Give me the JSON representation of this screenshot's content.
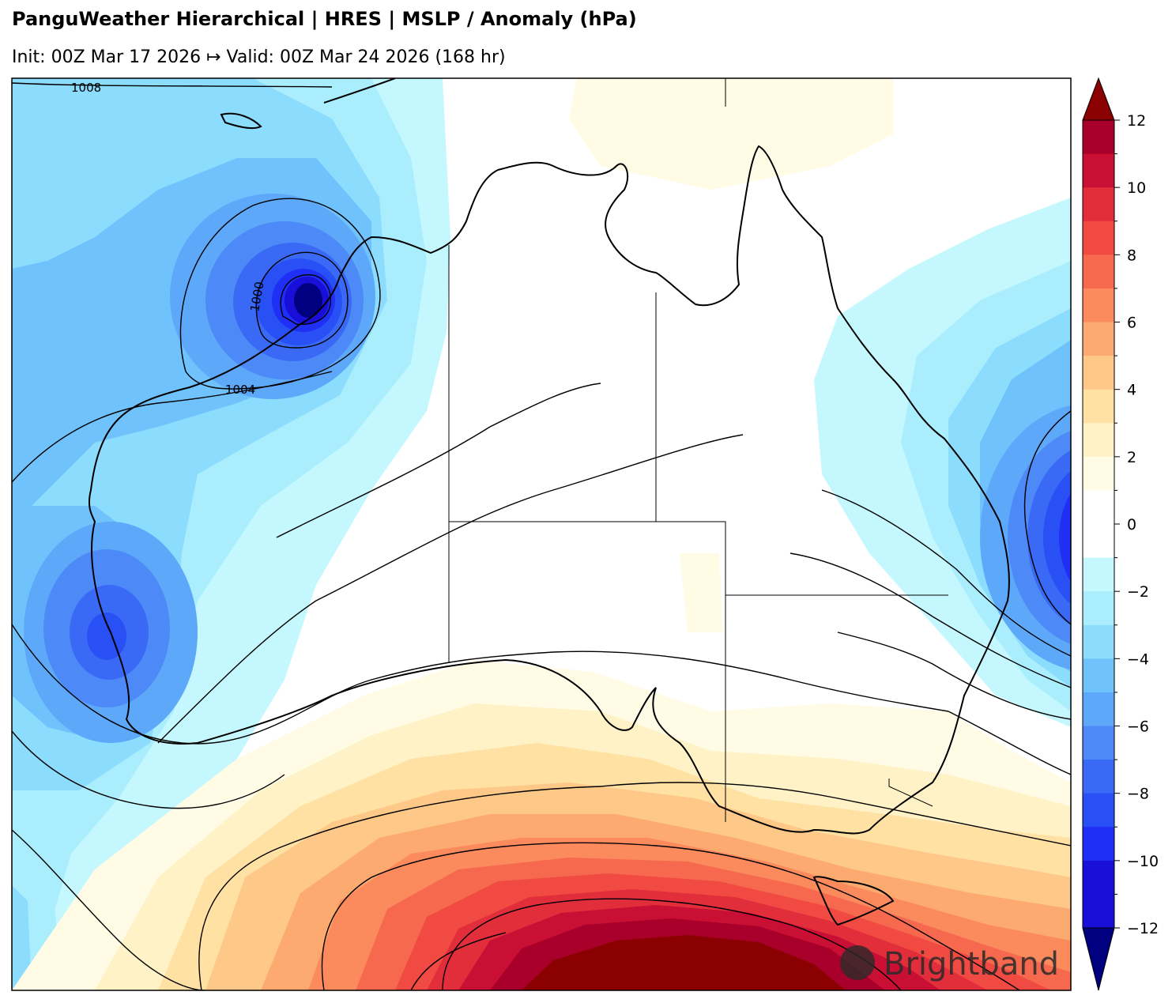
{
  "header": {
    "title": "PanguWeather Hierarchical | HRES | MSLP / Anomaly (hPa)",
    "subtitle": "Init: 00Z Mar 17 2026 ↦ Valid: 00Z Mar 24 2026 (168 hr)"
  },
  "map": {
    "region": "Australia",
    "field": "MSLP anomaly",
    "isobar_labels": [
      "1008",
      "1000",
      "1004"
    ]
  },
  "colorbar": {
    "ticks": [
      "12",
      "10",
      "8",
      "6",
      "4",
      "2",
      "0",
      "−2",
      "−4",
      "−6",
      "−8",
      "−10",
      "−12"
    ],
    "colors": {
      "neg_extreme": "#000080",
      "neg12": "#1a0fd9",
      "neg11": "#1f2ff5",
      "neg10": "#2850f5",
      "neg9": "#3a6af5",
      "neg8": "#4d8af7",
      "neg7": "#5ea8fa",
      "neg6": "#70c2fc",
      "neg5": "#8cdcfd",
      "neg4": "#aaeefe",
      "neg3": "#c5f8fe",
      "zero": "#ffffff",
      "pos1": "#fffbe5",
      "pos2": "#fff2c6",
      "pos3": "#ffe1a3",
      "pos4": "#fec888",
      "pos5": "#fdaa70",
      "pos6": "#fb8a5d",
      "pos7": "#f7694e",
      "pos8": "#f04a43",
      "pos9": "#e22d3b",
      "pos10": "#c91034",
      "pos11": "#a8002a",
      "pos_extreme": "#8b0000"
    }
  },
  "watermark": "Brightband"
}
